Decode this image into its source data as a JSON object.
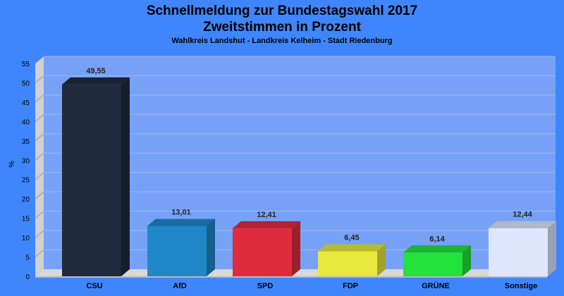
{
  "header": {
    "title_line1": "Schnellmeldung zur Bundestagswahl 2017",
    "title_line2": "Zweitstimmen in Prozent",
    "subtitle": "Wahlkreis Landshut - Landkreis Kelheim - Stadt Riedenburg"
  },
  "chart_data": {
    "type": "bar",
    "title": "Schnellmeldung zur Bundestagswahl 2017 Zweitstimmen in Prozent",
    "subtitle": "Wahlkreis Landshut - Landkreis Kelheim - Stadt Riedenburg",
    "ylabel": "%",
    "xlabel": "",
    "ylim": [
      0,
      55
    ],
    "yticks": [
      0,
      5,
      10,
      15,
      20,
      25,
      30,
      35,
      40,
      45,
      50,
      55
    ],
    "grid": true,
    "categories": [
      "CSU",
      "AfD",
      "SPD",
      "FDP",
      "GRÜNE",
      "Sonstige"
    ],
    "values": [
      49.55,
      13.01,
      12.41,
      6.45,
      6.14,
      12.44
    ],
    "value_labels": [
      "49,55",
      "13,01",
      "12,41",
      "6,45",
      "6,14",
      "12,44"
    ],
    "colors": [
      "#1f2a3d",
      "#1f86c8",
      "#e02b3d",
      "#e8e83c",
      "#22e23c",
      "#dfe6fd"
    ],
    "background_color": "#3f86fc",
    "plot_color": "#76a1f6"
  }
}
